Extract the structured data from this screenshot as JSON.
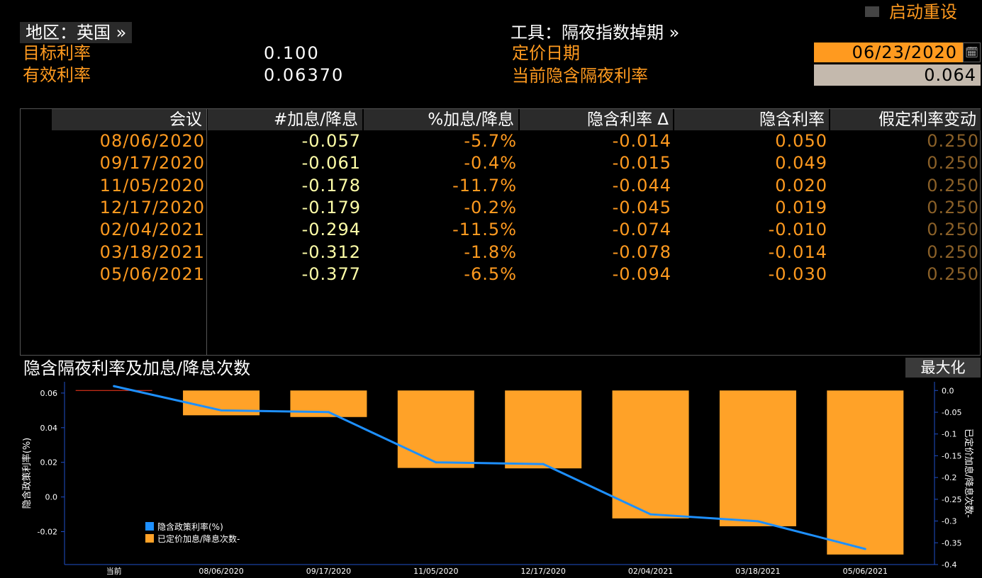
{
  "header": {
    "restart_label": "启动重设",
    "region_label": "地区：英国 »",
    "target_rate_label": "目标利率",
    "target_rate_value": "0.100",
    "effective_rate_label": "有效利率",
    "effective_rate_value": "0.06370",
    "instrument_label": "工具：隔夜指数掉期 »",
    "pricing_date_label": "定价日期",
    "pricing_date_value": "06/23/2020",
    "implied_rate_label": "当前隐含隔夜利率",
    "implied_rate_value": "0.064"
  },
  "table": {
    "columns": [
      "会议",
      "#加息/降息",
      "%加息/降息",
      "隐含利率 Δ",
      "隐含利率",
      "假定利率变动"
    ],
    "rows": [
      [
        "08/06/2020",
        "-0.057",
        "-5.7%",
        "-0.014",
        "0.050",
        "0.250"
      ],
      [
        "09/17/2020",
        "-0.061",
        "-0.4%",
        "-0.015",
        "0.049",
        "0.250"
      ],
      [
        "11/05/2020",
        "-0.178",
        "-11.7%",
        "-0.044",
        "0.020",
        "0.250"
      ],
      [
        "12/17/2020",
        "-0.179",
        "-0.2%",
        "-0.045",
        "0.019",
        "0.250"
      ],
      [
        "02/04/2021",
        "-0.294",
        "-11.5%",
        "-0.074",
        "-0.010",
        "0.250"
      ],
      [
        "03/18/2021",
        "-0.312",
        "-1.8%",
        "-0.078",
        "-0.014",
        "0.250"
      ],
      [
        "05/06/2021",
        "-0.377",
        "-6.5%",
        "-0.094",
        "-0.030",
        "0.250"
      ]
    ]
  },
  "chart": {
    "title": "隐含隔夜利率及加息/降息次数",
    "maximize_label": "最大化"
  },
  "chart_data": {
    "type": "bar",
    "categories": [
      "当前",
      "08/06/2020",
      "09/17/2020",
      "11/05/2020",
      "12/17/2020",
      "02/04/2021",
      "03/18/2021",
      "05/06/2021"
    ],
    "ylabel": "隐含政策利率(%)",
    "y2label": "已定价加息/降息次数-",
    "ylim": [
      -0.039,
      0.0665
    ],
    "y2lim": [
      -0.4,
      0.02
    ],
    "yticks": [
      -0.02,
      0.0,
      0.02,
      0.04,
      0.06
    ],
    "yticklabels": [
      "-0.02",
      "0.0",
      "0.02",
      "0.04",
      "0.06"
    ],
    "y2ticks": [
      0.0,
      -0.05,
      -0.1,
      -0.15,
      -0.2,
      -0.25,
      -0.3,
      -0.35,
      -0.4
    ],
    "y2ticklabels": [
      "0.0",
      "-0.05",
      "-0.1",
      "-0.15",
      "-0.2",
      "-0.25",
      "-0.3",
      "-0.35",
      "-0.4"
    ],
    "series": [
      {
        "name": "隐含政策利率(%)",
        "kind": "line",
        "axis": "left",
        "color": "#1e90ff",
        "values": [
          0.064,
          0.05,
          0.049,
          0.02,
          0.019,
          -0.01,
          -0.014,
          -0.03
        ]
      },
      {
        "name": "已定价加息/降息次数-",
        "kind": "bar",
        "axis": "right",
        "color": "#ffa228",
        "values": [
          0.0,
          -0.057,
          -0.061,
          -0.178,
          -0.179,
          -0.294,
          -0.312,
          -0.377
        ]
      }
    ],
    "legend": "bottom-left",
    "colors": {
      "reference_line": "#ff3b1f",
      "axis": "#1f4fc8",
      "text": "#ffffff"
    }
  }
}
